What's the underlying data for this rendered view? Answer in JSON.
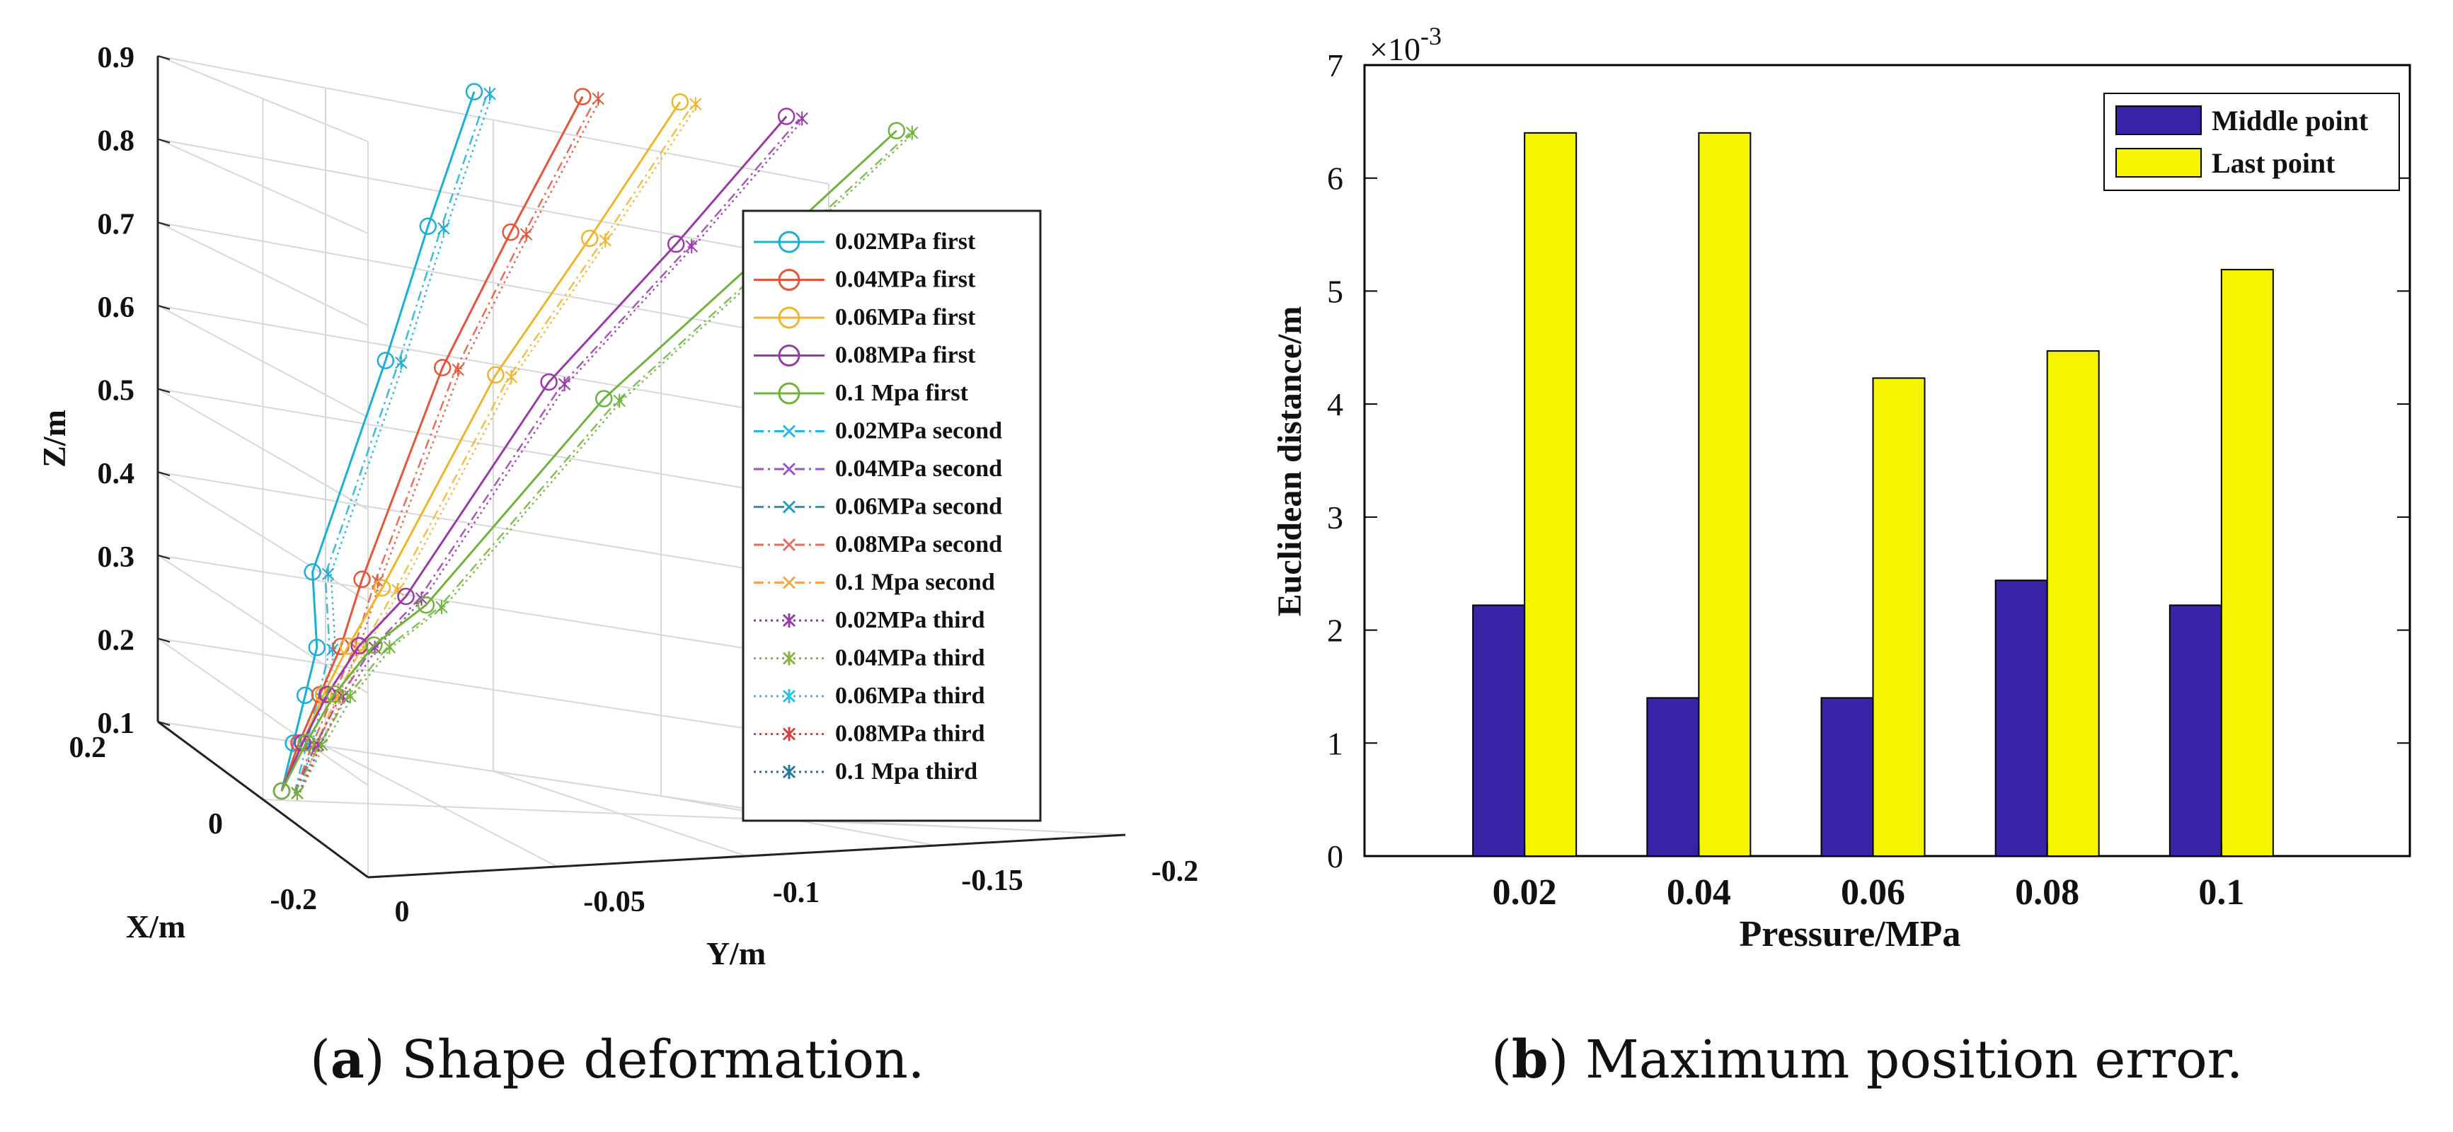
{
  "captions": {
    "a_letter": "a",
    "a_text": ") Shape deformation.",
    "b_letter": "b",
    "b_text": ") Maximum position error."
  },
  "chart_data": [
    {
      "type": "line3d",
      "zlabel": "Z/m",
      "xlabel": "X/m",
      "ylabel": "Y/m",
      "zticks": [
        "0.9",
        "0.8",
        "0.7",
        "0.6",
        "0.5",
        "0.4",
        "0.3",
        "0.2",
        "0.1"
      ],
      "xticks": [
        "0.2",
        "0",
        "-0.2"
      ],
      "yticks": [
        "0",
        "-0.05",
        "-0.1",
        "-0.15",
        "-0.2"
      ],
      "colors": [
        "#0072BD",
        "#D95319",
        "#EDB120",
        "#7E2F8E",
        "#77AC30",
        "#4DBEEE",
        "#A2142F"
      ],
      "legend": [
        {
          "label": "0.02MPa first",
          "style": "solid",
          "marker": "o",
          "color": "#1ab0d6"
        },
        {
          "label": "0.04MPa first",
          "style": "solid",
          "marker": "o",
          "color": "#e4553a"
        },
        {
          "label": "0.06MPa first",
          "style": "solid",
          "marker": "o",
          "color": "#f0b42a"
        },
        {
          "label": "0.08MPa first",
          "style": "solid",
          "marker": "o",
          "color": "#9a3aa8"
        },
        {
          "label": "0.1 Mpa first",
          "style": "solid",
          "marker": "o",
          "color": "#6fb33c"
        },
        {
          "label": "0.02MPa second",
          "style": "dashdot",
          "marker": "x",
          "color": "#21b9df"
        },
        {
          "label": "0.04MPa second",
          "style": "dashdot",
          "marker": "x",
          "color": "#9a55c8"
        },
        {
          "label": "0.06MPa second",
          "style": "dashdot",
          "marker": "x",
          "color": "#1f9cc0"
        },
        {
          "label": "0.08MPa second",
          "style": "dashdot",
          "marker": "x",
          "color": "#e86a5a"
        },
        {
          "label": "0.1 Mpa second",
          "style": "dashdot",
          "marker": "x",
          "color": "#f0a54a"
        },
        {
          "label": "0.02MPa third",
          "style": "dotted",
          "marker": "*",
          "color": "#9a3aa8"
        },
        {
          "label": "0.04MPa third",
          "style": "dotted",
          "marker": "*",
          "color": "#8ab33c"
        },
        {
          "label": "0.06MPa third",
          "style": "dotted",
          "marker": "*",
          "color": "#2bc0e8"
        },
        {
          "label": "0.08MPa third",
          "style": "dotted",
          "marker": "*",
          "color": "#d6413c"
        },
        {
          "label": "0.1 Mpa third",
          "style": "dotted",
          "marker": "*",
          "color": "#1f7aa0"
        }
      ],
      "series": [
        {
          "pressure_mpa": 0.02,
          "color": "#1ab0d6",
          "points": [
            [
              0,
              0,
              0.05
            ],
            [
              0,
              -0.0005,
              0.1
            ],
            [
              0,
              -0.001,
              0.15
            ],
            [
              0,
              -0.0015,
              0.2
            ],
            [
              0,
              0.004,
              0.28
            ],
            [
              0,
              -0.004,
              0.5
            ],
            [
              0,
              -0.008,
              0.64
            ],
            [
              0,
              -0.013,
              0.78
            ]
          ]
        },
        {
          "pressure_mpa": 0.04,
          "color": "#e4553a",
          "points": [
            [
              0,
              0,
              0.05
            ],
            [
              0,
              -0.002,
              0.1
            ],
            [
              0,
              -0.005,
              0.15
            ],
            [
              0,
              -0.008,
              0.2
            ],
            [
              0,
              -0.01,
              0.27
            ],
            [
              0,
              -0.02,
              0.49
            ],
            [
              0,
              -0.031,
              0.63
            ],
            [
              0,
              -0.043,
              0.77
            ]
          ]
        },
        {
          "pressure_mpa": 0.06,
          "color": "#f0b42a",
          "points": [
            [
              0,
              0,
              0.05
            ],
            [
              0,
              -0.003,
              0.1
            ],
            [
              0,
              -0.006,
              0.15
            ],
            [
              0,
              -0.01,
              0.2
            ],
            [
              0,
              -0.016,
              0.26
            ],
            [
              0,
              -0.035,
              0.48
            ],
            [
              0,
              -0.053,
              0.62
            ],
            [
              0,
              -0.07,
              0.76
            ]
          ]
        },
        {
          "pressure_mpa": 0.08,
          "color": "#9a3aa8",
          "points": [
            [
              0,
              0,
              0.05
            ],
            [
              0,
              -0.003,
              0.1
            ],
            [
              0,
              -0.007,
              0.15
            ],
            [
              0,
              -0.013,
              0.2
            ],
            [
              0,
              -0.023,
              0.25
            ],
            [
              0,
              -0.05,
              0.47
            ],
            [
              0,
              -0.077,
              0.61
            ],
            [
              0,
              -0.1,
              0.74
            ]
          ]
        },
        {
          "pressure_mpa": 0.1,
          "color": "#6fb33c",
          "points": [
            [
              0,
              0,
              0.05
            ],
            [
              0,
              -0.004,
              0.1
            ],
            [
              0,
              -0.009,
              0.15
            ],
            [
              0,
              -0.017,
              0.2
            ],
            [
              0,
              -0.029,
              0.24
            ],
            [
              0,
              -0.066,
              0.45
            ],
            [
              0,
              -0.1,
              0.59
            ],
            [
              0,
              -0.131,
              0.72
            ]
          ]
        }
      ]
    },
    {
      "type": "bar",
      "title": "",
      "exponent_label": "×10",
      "exponent_power": "-3",
      "xlabel": "Pressure/MPa",
      "ylabel": "Euclidean distance/m",
      "categories": [
        "0.02",
        "0.04",
        "0.06",
        "0.08",
        "0.1"
      ],
      "ylim": [
        0,
        7
      ],
      "yticks": [
        "0",
        "1",
        "2",
        "3",
        "4",
        "5",
        "6",
        "7"
      ],
      "series": [
        {
          "name": "Middle point",
          "color": "#3b23a8",
          "values": [
            2.22,
            1.4,
            1.4,
            2.44,
            2.22
          ]
        },
        {
          "name": "Last point",
          "color": "#f5f500",
          "values": [
            6.4,
            6.4,
            4.23,
            4.47,
            5.19
          ]
        }
      ],
      "legend_position": "top-right"
    }
  ]
}
